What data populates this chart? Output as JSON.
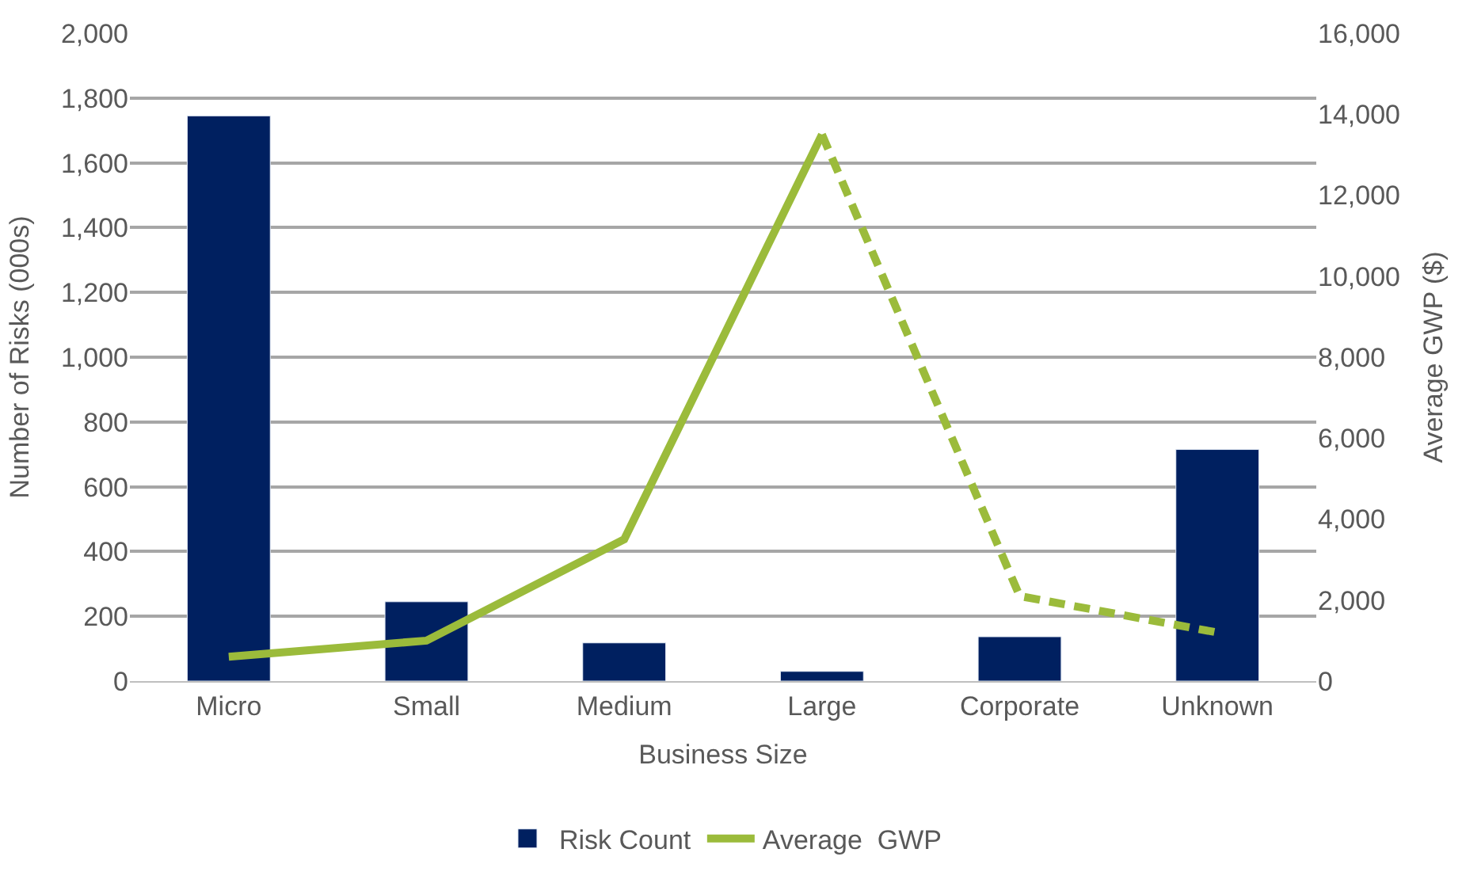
{
  "chart_data": {
    "type": "bar",
    "xlabel": "Business Size",
    "ylabel": "Number of Risks (000s)",
    "y2label": "Average GWP ($)",
    "categories": [
      "Micro",
      "Small",
      "Medium",
      "Large",
      "Corporate",
      "Unknown"
    ],
    "series": [
      {
        "name": "Risk Count",
        "color": "#002060",
        "values": [
          1745,
          245,
          118,
          30,
          137,
          715
        ]
      },
      {
        "name": "Average  GWP",
        "type": "line",
        "axis": "y2",
        "color": "#9bbb3b",
        "line_style": "solid",
        "values": [
          600,
          1000,
          3500,
          13500,
          null,
          null
        ]
      },
      {
        "type": "line",
        "axis": "y2",
        "color": "#9bbb3b",
        "line_style": "dashed",
        "values": [
          null,
          null,
          null,
          13500,
          2100,
          1200
        ]
      }
    ],
    "ylim": [
      0,
      2000
    ],
    "yticks": [
      0,
      200,
      400,
      600,
      800,
      {
        "value": 1000,
        "label": "1,000"
      },
      {
        "value": 1200,
        "label": "1,200"
      },
      {
        "value": 1400,
        "label": "1,400"
      },
      {
        "value": 1600,
        "label": "1,600"
      },
      {
        "value": 1800,
        "label": "1,800"
      },
      {
        "value": 2000,
        "label": "2,000"
      }
    ],
    "y2lim": [
      0,
      16000
    ],
    "y2ticks": [
      0,
      {
        "value": 2000,
        "label": "2,000"
      },
      {
        "value": 4000,
        "label": "4,000"
      },
      {
        "value": 6000,
        "label": "6,000"
      },
      {
        "value": 8000,
        "label": "8,000"
      },
      {
        "value": 10000,
        "label": "10,000"
      },
      {
        "value": 12000,
        "label": "12,000"
      },
      {
        "value": 14000,
        "label": "14,000"
      },
      {
        "value": 16000,
        "label": "16,000"
      }
    ],
    "grid": "y",
    "legend": "bottom",
    "marker": "none"
  }
}
